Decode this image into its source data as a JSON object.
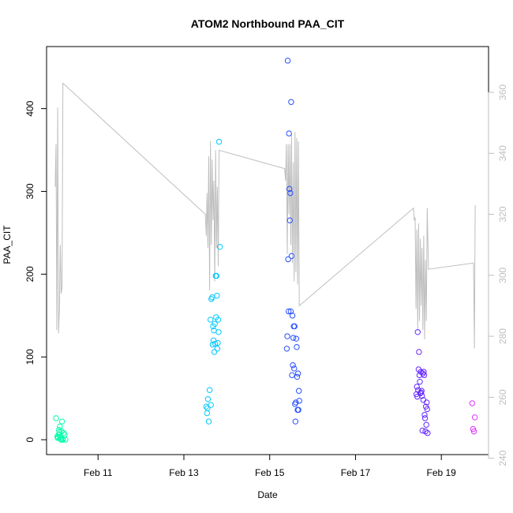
{
  "chart_data": {
    "type": "scatter",
    "title": "ATOM2 Northbound PAA_CIT",
    "xlabel": "Date",
    "ylabel": "PAA_CIT",
    "x_ticks": [
      {
        "value": 11,
        "label": "Feb 11"
      },
      {
        "value": 13,
        "label": "Feb 13"
      },
      {
        "value": 15,
        "label": "Feb 15"
      },
      {
        "value": 17,
        "label": "Feb 17"
      },
      {
        "value": 19,
        "label": "Feb 19"
      }
    ],
    "xlim": [
      9.8,
      20.1
    ],
    "ylim": [
      -18,
      475
    ],
    "y_ticks": [
      0,
      100,
      200,
      300,
      400
    ],
    "y2lim": [
      241.2,
      375
    ],
    "y2_ticks": [
      240,
      260,
      280,
      300,
      320,
      340,
      360
    ],
    "series": [
      {
        "color": "#00ffaa",
        "points": [
          [
            10.02,
            26
          ],
          [
            10.05,
            4
          ],
          [
            10.06,
            2
          ],
          [
            10.07,
            3
          ],
          [
            10.08,
            6
          ],
          [
            10.09,
            12
          ],
          [
            10.1,
            9
          ],
          [
            10.11,
            16
          ],
          [
            10.12,
            3
          ],
          [
            10.13,
            1
          ],
          [
            10.14,
            0
          ],
          [
            10.15,
            10
          ],
          [
            10.16,
            22
          ],
          [
            10.17,
            1
          ],
          [
            10.18,
            0
          ],
          [
            10.2,
            8
          ],
          [
            10.22,
            6
          ],
          [
            10.24,
            0
          ]
        ]
      },
      {
        "color": "#00c8ff",
        "points": [
          [
            13.52,
            40
          ],
          [
            13.54,
            32
          ],
          [
            13.55,
            38
          ],
          [
            13.56,
            49
          ],
          [
            13.58,
            22
          ],
          [
            13.6,
            60
          ],
          [
            13.62,
            145
          ],
          [
            13.63,
            42
          ],
          [
            13.64,
            170
          ],
          [
            13.66,
            172
          ],
          [
            13.67,
            115
          ],
          [
            13.68,
            137
          ],
          [
            13.69,
            120
          ],
          [
            13.7,
            132
          ],
          [
            13.71,
            106
          ],
          [
            13.72,
            140
          ],
          [
            13.73,
            116
          ],
          [
            13.74,
            198
          ],
          [
            13.75,
            148
          ],
          [
            13.76,
            198
          ],
          [
            13.77,
            174
          ],
          [
            13.78,
            110
          ],
          [
            13.79,
            117
          ],
          [
            13.8,
            145
          ],
          [
            13.81,
            130
          ],
          [
            13.82,
            360
          ],
          [
            13.84,
            233
          ]
        ]
      },
      {
        "color": "#2850ff",
        "points": [
          [
            15.4,
            110
          ],
          [
            15.41,
            125
          ],
          [
            15.42,
            458
          ],
          [
            15.43,
            218
          ],
          [
            15.44,
            155
          ],
          [
            15.45,
            370
          ],
          [
            15.46,
            303
          ],
          [
            15.47,
            265
          ],
          [
            15.48,
            298
          ],
          [
            15.49,
            155
          ],
          [
            15.5,
            408
          ],
          [
            15.51,
            222
          ],
          [
            15.52,
            78
          ],
          [
            15.53,
            150
          ],
          [
            15.54,
            90
          ],
          [
            15.55,
            123
          ],
          [
            15.56,
            137
          ],
          [
            15.57,
            86
          ],
          [
            15.58,
            137
          ],
          [
            15.59,
            43
          ],
          [
            15.6,
            22
          ],
          [
            15.61,
            45
          ],
          [
            15.62,
            122
          ],
          [
            15.63,
            112
          ],
          [
            15.64,
            76
          ],
          [
            15.65,
            36
          ],
          [
            15.66,
            80
          ],
          [
            15.67,
            36
          ],
          [
            15.68,
            59
          ],
          [
            15.69,
            47
          ]
        ]
      },
      {
        "color": "#6428ff",
        "points": [
          [
            18.42,
            55
          ],
          [
            18.43,
            64
          ],
          [
            18.44,
            52
          ],
          [
            18.45,
            130
          ],
          [
            18.46,
            60
          ],
          [
            18.47,
            85
          ],
          [
            18.48,
            106
          ],
          [
            18.49,
            78
          ],
          [
            18.5,
            70
          ],
          [
            18.51,
            56
          ],
          [
            18.52,
            82
          ],
          [
            18.53,
            57
          ],
          [
            18.54,
            59
          ],
          [
            18.55,
            53
          ],
          [
            18.56,
            11
          ],
          [
            18.57,
            80
          ],
          [
            18.58,
            48
          ],
          [
            18.59,
            82
          ],
          [
            18.6,
            78
          ],
          [
            18.61,
            30
          ],
          [
            18.62,
            26
          ],
          [
            18.63,
            10
          ],
          [
            18.64,
            40
          ],
          [
            18.65,
            18
          ],
          [
            18.66,
            45
          ],
          [
            18.67,
            37
          ],
          [
            18.68,
            8
          ]
        ]
      },
      {
        "color": "#dc32ff",
        "points": [
          [
            19.72,
            44
          ],
          [
            19.74,
            13
          ],
          [
            19.76,
            10
          ],
          [
            19.78,
            27
          ]
        ]
      }
    ],
    "secondary_line": {
      "color": "#bebebe",
      "x": [
        10.0,
        10.02,
        10.04,
        10.06,
        10.08,
        10.1,
        10.12,
        10.14,
        10.16,
        10.18,
        13.5,
        13.52,
        13.54,
        13.56,
        13.58,
        13.6,
        13.62,
        13.64,
        13.66,
        13.68,
        13.7,
        13.72,
        13.74,
        13.76,
        13.78,
        13.8,
        13.82,
        15.35,
        15.37,
        15.39,
        15.41,
        15.43,
        15.45,
        15.47,
        15.49,
        15.51,
        15.53,
        15.55,
        15.57,
        15.59,
        15.61,
        15.63,
        15.65,
        15.67,
        15.69,
        18.35,
        18.37,
        18.39,
        18.41,
        18.43,
        18.45,
        18.47,
        18.49,
        18.51,
        18.53,
        18.55,
        18.57,
        18.59,
        18.61,
        18.63,
        18.65,
        18.67,
        18.7,
        19.75,
        19.77,
        19.79
      ],
      "y": [
        329,
        343,
        282,
        355,
        281,
        289,
        310,
        294,
        296,
        363,
        320,
        313,
        327,
        309,
        339,
        295,
        344,
        310,
        338,
        318,
        331,
        298,
        341,
        309,
        329,
        303,
        341,
        335,
        331,
        343,
        307,
        343,
        320,
        343,
        310,
        346,
        304,
        337,
        298,
        347,
        301,
        345,
        297,
        344,
        290,
        322,
        318,
        319,
        289,
        315,
        282,
        317,
        285,
        312,
        290,
        309,
        282,
        313,
        279,
        305,
        285,
        322,
        302,
        304,
        276,
        323
      ]
    }
  }
}
